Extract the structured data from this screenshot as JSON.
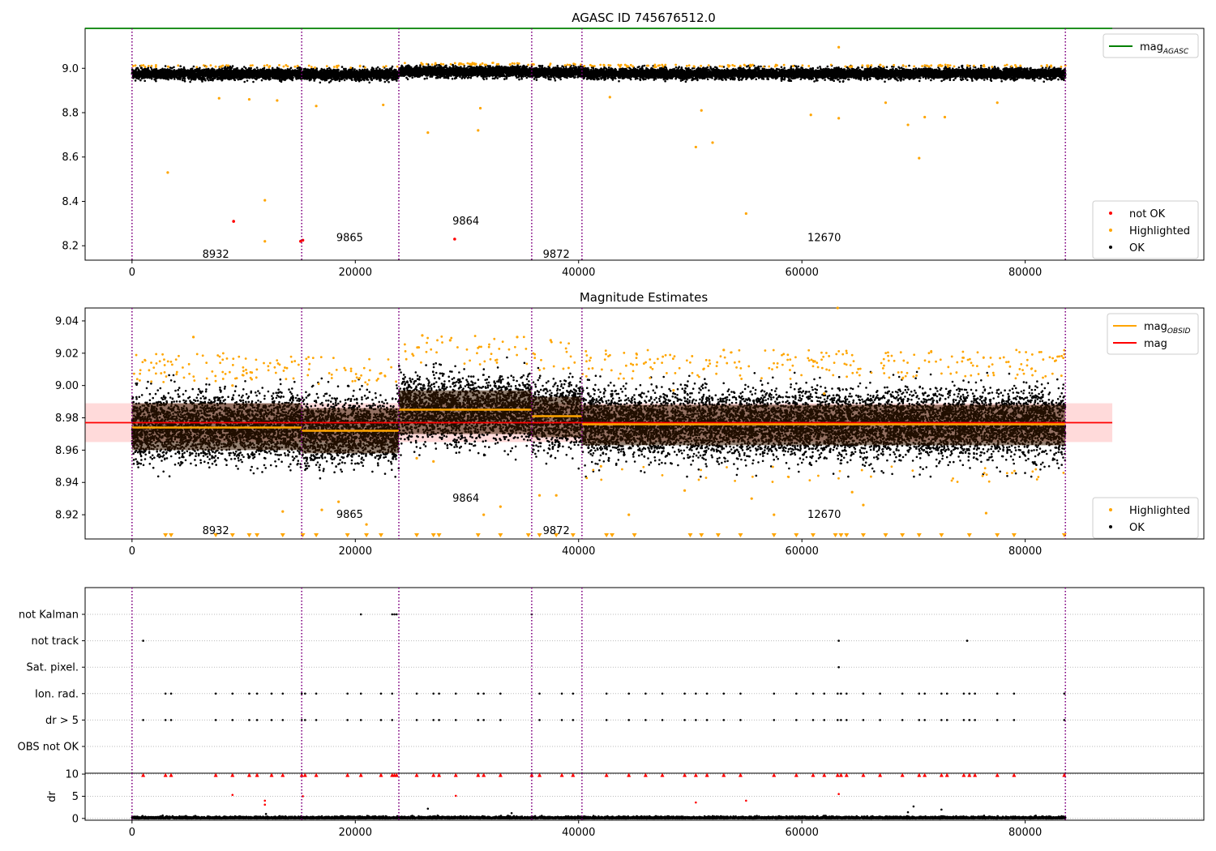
{
  "chart_data": [
    {
      "type": "scatter",
      "title": "AGASC ID 745676512.0",
      "xlim": [
        -4200,
        96000
      ],
      "ylim": [
        8.135,
        9.18
      ],
      "xticks": [
        0,
        20000,
        40000,
        60000,
        80000
      ],
      "xtick_labels": [
        "0",
        "20000",
        "40000",
        "60000",
        "80000"
      ],
      "yticks": [
        8.2,
        8.4,
        8.6,
        8.8,
        9.0
      ],
      "ytick_labels": [
        "8.2",
        "8.4",
        "8.6",
        "8.8",
        "9.0"
      ],
      "obs_boundaries": [
        0,
        15200,
        23900,
        35800,
        40300,
        83600
      ],
      "obsid_labels": [
        {
          "text": "8932",
          "x": 7500,
          "y": 8.16
        },
        {
          "text": "9865",
          "x": 19500,
          "y": 8.235
        },
        {
          "text": "9864",
          "x": 29900,
          "y": 8.31
        },
        {
          "text": "9872",
          "x": 38000,
          "y": 8.16
        },
        {
          "text": "12670",
          "x": 62000,
          "y": 8.235
        }
      ],
      "segments": [
        {
          "x0": 0,
          "x1": 15200,
          "mean": 8.975,
          "spread": 0.02
        },
        {
          "x0": 15200,
          "x1": 23900,
          "mean": 8.972,
          "spread": 0.02
        },
        {
          "x0": 23900,
          "x1": 35800,
          "mean": 8.985,
          "spread": 0.02
        },
        {
          "x0": 35800,
          "x1": 40300,
          "mean": 8.981,
          "spread": 0.02
        },
        {
          "x0": 40300,
          "x1": 83600,
          "mean": 8.976,
          "spread": 0.02
        }
      ],
      "agasc_mag": 9.18,
      "agasc_line_range": [
        -4200,
        87800
      ],
      "not_ok_points": [
        [
          9100,
          8.31
        ],
        [
          15100,
          8.22
        ],
        [
          28900,
          8.23
        ],
        [
          15300,
          8.225
        ]
      ],
      "highlighted_points": [
        [
          3200,
          8.53
        ],
        [
          11900,
          8.405
        ],
        [
          11900,
          8.22
        ],
        [
          55000,
          8.345
        ],
        [
          26500,
          8.71
        ],
        [
          31000,
          8.72
        ],
        [
          50500,
          8.645
        ],
        [
          52000,
          8.665
        ],
        [
          70500,
          8.595
        ],
        [
          7800,
          8.865
        ],
        [
          10500,
          8.86
        ],
        [
          13000,
          8.855
        ],
        [
          16500,
          8.83
        ],
        [
          22500,
          8.835
        ],
        [
          31200,
          8.82
        ],
        [
          42800,
          8.87
        ],
        [
          51000,
          8.81
        ],
        [
          60800,
          8.79
        ],
        [
          63300,
          8.775
        ],
        [
          67500,
          8.845
        ],
        [
          69500,
          8.745
        ],
        [
          71000,
          8.78
        ],
        [
          72800,
          8.78
        ],
        [
          77500,
          8.845
        ],
        [
          63300,
          9.095
        ]
      ],
      "legends": [
        {
          "position": "top-right",
          "entries": [
            {
              "label": "mag",
              "sub": "AGASC",
              "color": "#008000",
              "kind": "line"
            }
          ]
        },
        {
          "position": "bottom-right",
          "entries": [
            {
              "label": "not OK",
              "color": "#ff0000",
              "kind": "dot"
            },
            {
              "label": "Highlighted",
              "color": "#ffa500",
              "kind": "dot"
            },
            {
              "label": "OK",
              "color": "#000000",
              "kind": "dot"
            }
          ]
        }
      ],
      "colors": {
        "ok": "#000000",
        "highlighted": "#ffa500",
        "not_ok": "#ff0000",
        "boundary": "#800080",
        "agasc": "#008000"
      }
    },
    {
      "type": "scatter",
      "title": "Magnitude Estimates",
      "xlim": [
        -4200,
        96000
      ],
      "ylim": [
        8.905,
        9.048
      ],
      "xticks": [
        0,
        20000,
        40000,
        60000,
        80000
      ],
      "xtick_labels": [
        "0",
        "20000",
        "40000",
        "60000",
        "80000"
      ],
      "yticks": [
        8.92,
        8.94,
        8.96,
        8.98,
        9.0,
        9.02,
        9.04
      ],
      "ytick_labels": [
        "8.92",
        "8.94",
        "8.96",
        "8.98",
        "9.00",
        "9.02",
        "9.04"
      ],
      "obs_boundaries": [
        0,
        15200,
        23900,
        35800,
        40300,
        83600
      ],
      "obsid_labels": [
        {
          "text": "8932",
          "x": 7500,
          "y": 8.91
        },
        {
          "text": "9865",
          "x": 19500,
          "y": 8.92
        },
        {
          "text": "9864",
          "x": 29900,
          "y": 8.93
        },
        {
          "text": "9872",
          "x": 38000,
          "y": 8.91
        },
        {
          "text": "12670",
          "x": 62000,
          "y": 8.92
        }
      ],
      "segments": [
        {
          "x0": 0,
          "x1": 15200,
          "mean": 8.974,
          "band": [
            8.96,
            8.989
          ],
          "spread": 0.018
        },
        {
          "x0": 15200,
          "x1": 23900,
          "mean": 8.972,
          "band": [
            8.958,
            8.986
          ],
          "spread": 0.018
        },
        {
          "x0": 23900,
          "x1": 35800,
          "mean": 8.985,
          "band": [
            8.97,
            8.997
          ],
          "spread": 0.018
        },
        {
          "x0": 35800,
          "x1": 40300,
          "mean": 8.981,
          "band": [
            8.968,
            8.993
          ],
          "spread": 0.018
        },
        {
          "x0": 40300,
          "x1": 83600,
          "mean": 8.976,
          "band": [
            8.963,
            8.988
          ],
          "spread": 0.018
        }
      ],
      "overall_mag": 8.977,
      "overall_band": [
        8.965,
        8.989
      ],
      "overall_range": [
        -4200,
        87800
      ],
      "highlighted_points": [
        [
          13500,
          8.922
        ],
        [
          17000,
          8.923
        ],
        [
          18500,
          8.928
        ],
        [
          21000,
          8.914
        ],
        [
          25500,
          8.955
        ],
        [
          27000,
          8.953
        ],
        [
          31500,
          8.92
        ],
        [
          33000,
          8.925
        ],
        [
          36500,
          8.932
        ],
        [
          38000,
          8.932
        ],
        [
          42000,
          8.95
        ],
        [
          44500,
          8.92
        ],
        [
          49500,
          8.935
        ],
        [
          55500,
          8.93
        ],
        [
          57500,
          8.92
        ],
        [
          64500,
          8.934
        ],
        [
          65500,
          8.926
        ],
        [
          76500,
          8.921
        ],
        [
          63200,
          9.048
        ],
        [
          5500,
          9.03
        ],
        [
          26000,
          9.031
        ],
        [
          28500,
          9.028
        ],
        [
          34500,
          9.03
        ],
        [
          37500,
          9.028
        ],
        [
          53000,
          9.022
        ],
        [
          9000,
          9.0
        ],
        [
          48500,
          8.997
        ],
        [
          62000,
          8.995
        ]
      ],
      "triangle_x": [
        3000,
        3500,
        7500,
        9000,
        10500,
        11200,
        13500,
        15300,
        16500,
        19300,
        21000,
        22300,
        25500,
        27000,
        27500,
        31000,
        33000,
        35500,
        36500,
        38000,
        39500,
        42500,
        43000,
        45000,
        50000,
        51000,
        52500,
        54500,
        57500,
        59500,
        61000,
        63000,
        63500,
        64000,
        65500,
        67500,
        69000,
        70500,
        72500,
        75000,
        77500,
        79000,
        83500
      ],
      "legends": [
        {
          "position": "top-right",
          "entries": [
            {
              "label": "mag",
              "sub": "OBSID",
              "color": "#ffa500",
              "kind": "line"
            },
            {
              "label": "mag",
              "color": "#ff0000",
              "kind": "line"
            }
          ]
        },
        {
          "position": "bottom-right",
          "entries": [
            {
              "label": "Highlighted",
              "color": "#ffa500",
              "kind": "dot"
            },
            {
              "label": "OK",
              "color": "#000000",
              "kind": "dot"
            }
          ]
        }
      ],
      "colors": {
        "ok": "#000000",
        "highlighted": "#ffa500",
        "mean": "#ff0000",
        "obs_mean": "#ffa500",
        "band": "#ffdada",
        "boundary": "#800080"
      }
    },
    {
      "type": "scatter",
      "title": "",
      "xlim": [
        -4200,
        96000
      ],
      "categories": [
        "not Kalman",
        "not track",
        "Sat. pixel.",
        "Ion. rad.",
        "dr > 5",
        "OBS not OK"
      ],
      "obs_boundaries": [
        0,
        15200,
        23900,
        35800,
        40300,
        83600
      ],
      "flag_points": {
        "not Kalman": [
          20500,
          23300,
          23500,
          23700,
          35800
        ],
        "not track": [
          1000,
          63300,
          74800
        ],
        "Sat. pixel.": [
          63300
        ],
        "Ion. rad.": [
          3000,
          3500,
          7500,
          9000,
          10500,
          11200,
          12500,
          13500,
          15200,
          15500,
          16500,
          19300,
          20500,
          22300,
          23300,
          25500,
          27000,
          27500,
          29000,
          31000,
          31500,
          33000,
          36500,
          38500,
          39500,
          42500,
          44500,
          46000,
          47500,
          49500,
          50500,
          51500,
          53000,
          54500,
          57500,
          59500,
          61000,
          62000,
          63200,
          63500,
          64000,
          65500,
          67000,
          69000,
          70500,
          71000,
          72500,
          73000,
          74500,
          75000,
          75500,
          77500,
          79000,
          83500
        ],
        "dr > 5": [
          1000,
          3000,
          3500,
          7500,
          9000,
          10500,
          11200,
          12500,
          13500,
          15200,
          15500,
          16500,
          19300,
          20500,
          22300,
          23300,
          25500,
          27000,
          27500,
          29000,
          31000,
          31500,
          33000,
          36500,
          38500,
          39500,
          42500,
          44500,
          46000,
          47500,
          49500,
          50500,
          51500,
          53000,
          54500,
          57500,
          59500,
          61000,
          62000,
          63200,
          63500,
          64000,
          65500,
          67000,
          69000,
          70500,
          71000,
          72500,
          73000,
          74500,
          75000,
          75500,
          77500,
          79000,
          83500
        ],
        "OBS not OK": []
      },
      "colors": {
        "ok": "#000000",
        "grid": "#bbbbbb",
        "boundary": "#800080"
      }
    },
    {
      "type": "scatter",
      "title": "",
      "ylabel": "dr",
      "xlim": [
        -4200,
        96000
      ],
      "ylim": [
        -0.4,
        10.2
      ],
      "xticks": [
        0,
        20000,
        40000,
        60000,
        80000
      ],
      "xtick_labels": [
        "0",
        "20000",
        "40000",
        "60000",
        "80000"
      ],
      "yticks": [
        0,
        5,
        10
      ],
      "ytick_labels": [
        "0",
        "5",
        "10"
      ],
      "obs_boundaries": [
        0,
        15200,
        23900,
        35800,
        40300,
        83600
      ],
      "red_triangle_x": [
        1000,
        3000,
        3500,
        7500,
        9000,
        10500,
        11200,
        12500,
        13500,
        15200,
        15500,
        16500,
        19300,
        20500,
        22300,
        23300,
        23500,
        23700,
        25500,
        27000,
        27500,
        29000,
        31000,
        31500,
        33000,
        35800,
        36500,
        38500,
        39500,
        42500,
        44500,
        46000,
        47500,
        49500,
        50500,
        51500,
        53000,
        54500,
        57500,
        59500,
        61000,
        62000,
        63200,
        63500,
        64000,
        65500,
        67000,
        69000,
        70500,
        71000,
        72500,
        73000,
        74500,
        75000,
        75500,
        77500,
        79000,
        83500
      ],
      "red_points": [
        [
          9000,
          5.3
        ],
        [
          11900,
          3.1
        ],
        [
          15300,
          5.0
        ],
        [
          50500,
          3.6
        ],
        [
          55000,
          4.0
        ],
        [
          63300,
          5.5
        ],
        [
          29000,
          5.1
        ],
        [
          11900,
          4.0
        ]
      ],
      "black_points": [
        [
          26500,
          2.2
        ],
        [
          70000,
          2.7
        ],
        [
          72500,
          2.0
        ],
        [
          69500,
          1.4
        ],
        [
          12000,
          1.0
        ],
        [
          34000,
          1.2
        ]
      ],
      "colors": {
        "ok": "#000000",
        "flag": "#ff0000",
        "grid": "#bbbbbb",
        "boundary": "#800080"
      }
    }
  ]
}
